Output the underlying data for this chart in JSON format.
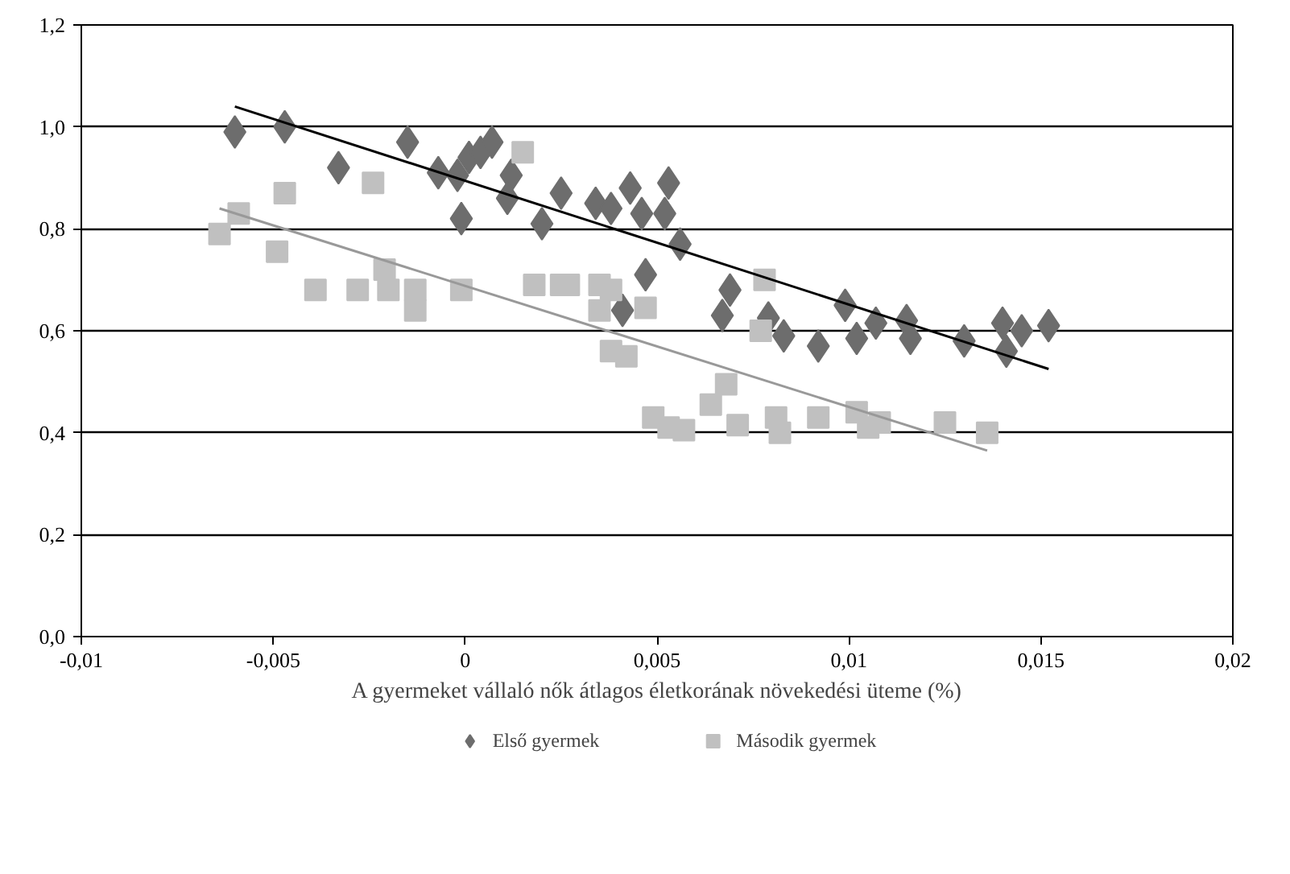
{
  "chart_data": {
    "type": "scatter",
    "xlabel": "A gyermeket vállaló nők átlagos életkorának növekedési üteme (%)",
    "xlim": [
      -0.01,
      0.02
    ],
    "xticks": [
      {
        "value": -0.01,
        "label": "-0,01"
      },
      {
        "value": -0.005,
        "label": "-0,005"
      },
      {
        "value": 0,
        "label": "0"
      },
      {
        "value": 0.005,
        "label": "0,005"
      },
      {
        "value": 0.01,
        "label": "0,01"
      },
      {
        "value": 0.015,
        "label": "0,015"
      },
      {
        "value": 0.02,
        "label": "0,02"
      }
    ],
    "ylim": [
      0,
      1.2
    ],
    "yticks": [
      {
        "value": 0,
        "label": "0,0"
      },
      {
        "value": 0.2,
        "label": "0,2"
      },
      {
        "value": 0.4,
        "label": "0,4"
      },
      {
        "value": 0.6,
        "label": "0,6"
      },
      {
        "value": 0.8,
        "label": "0,8"
      },
      {
        "value": 1.0,
        "label": "1,0"
      },
      {
        "value": 1.2,
        "label": "1,2"
      }
    ],
    "grid": "y",
    "legend": "bottom",
    "series": [
      {
        "name": "Első gyermek",
        "marker": "diamond",
        "color": "#6d6d6d",
        "x": [
          -0.006,
          -0.0047,
          -0.0033,
          -0.0015,
          -0.0007,
          -0.0002,
          -0.0001,
          0.0001,
          0.0004,
          0.0007,
          0.0012,
          0.0011,
          0.002,
          0.0025,
          0.0034,
          0.0038,
          0.0041,
          0.0043,
          0.0046,
          0.0047,
          0.0052,
          0.0053,
          0.0056,
          0.0067,
          0.0069,
          0.0079,
          0.0083,
          0.0092,
          0.0099,
          0.0102,
          0.0107,
          0.0115,
          0.0116,
          0.013,
          0.014,
          0.0141,
          0.0145,
          0.0152
        ],
        "values": [
          0.99,
          1.0,
          0.92,
          0.97,
          0.91,
          0.905,
          0.82,
          0.94,
          0.95,
          0.97,
          0.905,
          0.86,
          0.81,
          0.87,
          0.85,
          0.84,
          0.64,
          0.88,
          0.83,
          0.71,
          0.83,
          0.89,
          0.77,
          0.63,
          0.68,
          0.625,
          0.59,
          0.57,
          0.65,
          0.585,
          0.615,
          0.62,
          0.585,
          0.58,
          0.615,
          0.56,
          0.6,
          0.61
        ]
      },
      {
        "name": "Második gyermek",
        "marker": "square",
        "color": "#c0c0c0",
        "x": [
          -0.0064,
          -0.0059,
          -0.0049,
          -0.0047,
          -0.0039,
          -0.0028,
          -0.0024,
          -0.0021,
          -0.002,
          -0.0013,
          -0.0013,
          -0.0001,
          0.0015,
          0.0018,
          0.0025,
          0.0027,
          0.0035,
          0.0035,
          0.0038,
          0.0038,
          0.0042,
          0.0047,
          0.0049,
          0.0053,
          0.0057,
          0.0064,
          0.0068,
          0.0071,
          0.0077,
          0.0078,
          0.0081,
          0.0082,
          0.0092,
          0.0102,
          0.0105,
          0.0108,
          0.0125,
          0.0136
        ],
        "values": [
          0.79,
          0.83,
          0.755,
          0.87,
          0.68,
          0.68,
          0.89,
          0.72,
          0.68,
          0.68,
          0.64,
          0.68,
          0.95,
          0.69,
          0.69,
          0.69,
          0.69,
          0.64,
          0.68,
          0.56,
          0.55,
          0.645,
          0.43,
          0.41,
          0.405,
          0.455,
          0.495,
          0.415,
          0.6,
          0.7,
          0.43,
          0.4,
          0.43,
          0.44,
          0.41,
          0.42,
          0.42,
          0.4
        ]
      },
      {
        "type": "line",
        "color": "#000000",
        "x": [
          -0.006,
          0.0152
        ],
        "values": [
          1.04,
          0.525
        ]
      },
      {
        "type": "line",
        "color": "#999999",
        "x": [
          -0.0064,
          0.0136
        ],
        "values": [
          0.84,
          0.365
        ]
      }
    ]
  }
}
